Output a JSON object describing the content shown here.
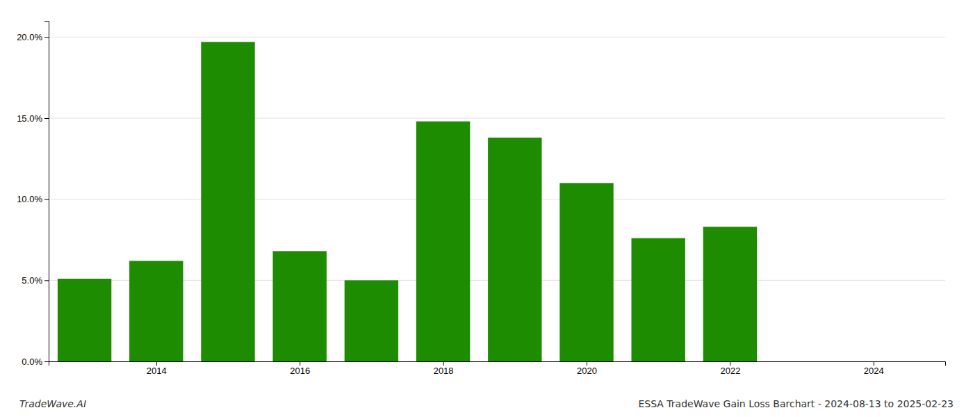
{
  "chart_data": {
    "type": "bar",
    "x": [
      2013,
      2014,
      2015,
      2016,
      2017,
      2018,
      2019,
      2020,
      2021,
      2022
    ],
    "values": [
      0.051,
      0.062,
      0.197,
      0.068,
      0.05,
      0.148,
      0.138,
      0.11,
      0.076,
      0.083
    ],
    "color": "#1e8c00",
    "xlim": [
      2012.5,
      2025.0
    ],
    "xticks": [
      2014,
      2016,
      2018,
      2020,
      2022,
      2024
    ],
    "ylim": [
      0,
      0.21
    ],
    "yticks": [
      {
        "value": 0.0,
        "label": "0.0%"
      },
      {
        "value": 0.05,
        "label": "5.0%"
      },
      {
        "value": 0.1,
        "label": "10.0%"
      },
      {
        "value": 0.15,
        "label": "15.0%"
      },
      {
        "value": 0.2,
        "label": "20.0%"
      }
    ],
    "grid": true,
    "annotations": [
      "TradeWave.AI",
      "ESSA TradeWave Gain Loss Barchart - 2024-08-13 to 2025-02-23"
    ]
  }
}
